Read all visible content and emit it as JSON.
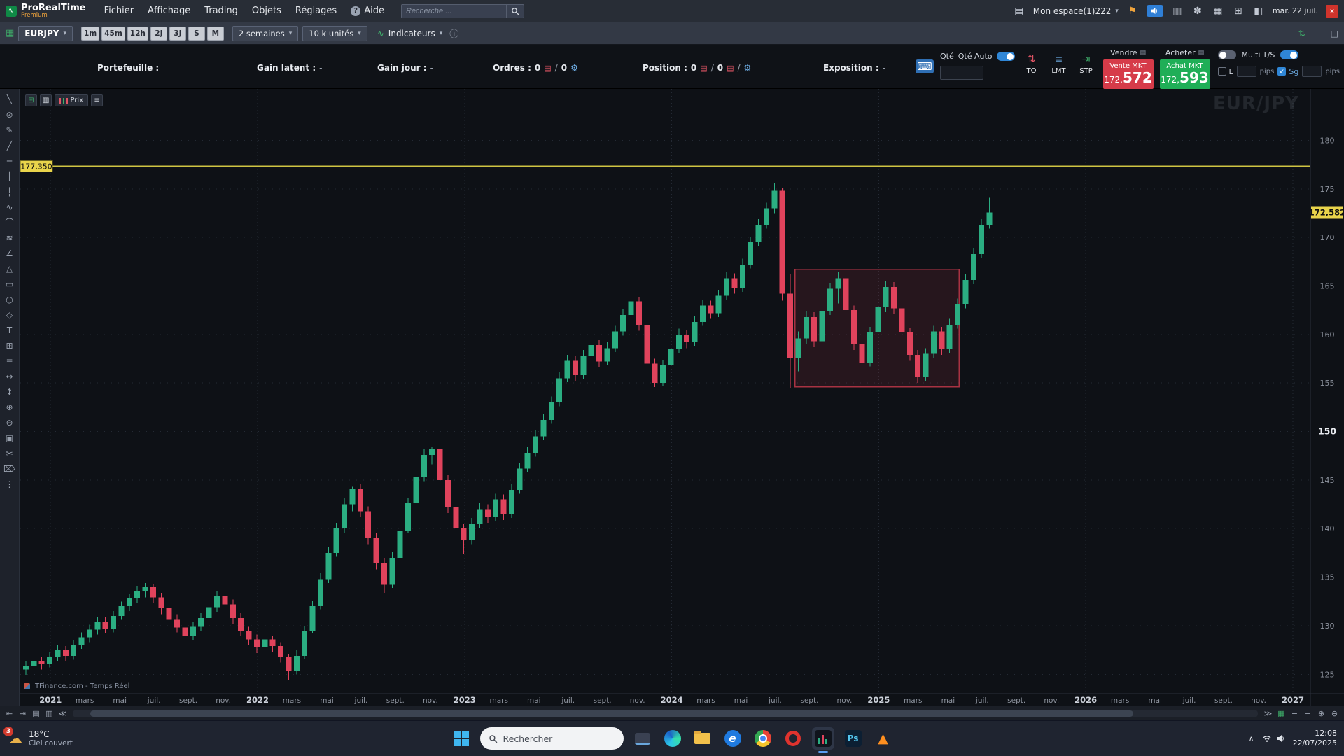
{
  "menubar": {
    "brand": "ProRealTime",
    "brand_tier": "Premium",
    "menus": [
      "Fichier",
      "Affichage",
      "Trading",
      "Objets",
      "Réglages"
    ],
    "help_label": "Aide",
    "search_placeholder": "Recherche ...",
    "workspace_label": "Mon espace(1)222",
    "datetime": "mar. 22 juil."
  },
  "toolbar": {
    "symbol": "EURJPY",
    "timeframes": [
      "1m",
      "45m",
      "12h",
      "2J",
      "3J",
      "S",
      "M"
    ],
    "period": "2 semaines",
    "quantity": "10 k unités",
    "indicators_label": "Indicateurs"
  },
  "tradingbar": {
    "portfolio_label": "Portefeuille :",
    "gain_latent_label": "Gain latent :",
    "gain_latent_value": "-",
    "gain_day_label": "Gain jour :",
    "gain_day_value": "-",
    "orders_label": "Ordres :",
    "orders_open": "0",
    "orders_sep": "/",
    "orders_pending": "0",
    "position_label": "Position :",
    "position_qty": "0",
    "position_sep": "/",
    "position_count": "0",
    "position_sep2": "/",
    "exposure_label": "Exposition :",
    "exposure_value": "-",
    "qty_label": "Qté",
    "qty_auto_label": "Qté Auto",
    "qty_value": "",
    "btn_to": "TO",
    "btn_lmt": "LMT",
    "btn_stp": "STP",
    "sell_header": "Vendre",
    "buy_header": "Acheter",
    "sell_mkt_label": "Vente MKT",
    "sell_price_prefix": "172,",
    "sell_price_big": "572",
    "buy_mkt_label": "Achat MKT",
    "buy_price_prefix": "172,",
    "buy_price_big": "593",
    "limit_checkbox_label": "L",
    "pips_label_1": "pips",
    "multi_ts_label": "Multi T/S",
    "sg_label": "Sg",
    "pips_label_2": "pips"
  },
  "chart_header": {
    "price_panel_label": "Prix"
  },
  "watermark": "EUR/JPY",
  "feed_label": "ITFinance.com - Temps Réel",
  "left_tools": [
    "╲",
    "⊘",
    "✎",
    "╱",
    "─",
    "│",
    "┆",
    "∿",
    "⌒",
    "≋",
    "∠",
    "△",
    "▭",
    "○",
    "◇",
    "T",
    "⊞",
    "≡",
    "↔",
    "↕",
    "⊕",
    "⊖",
    "▣",
    "✂",
    "⌦",
    "⋮"
  ],
  "scrollbar": {
    "left_icons": [
      "⇤",
      "⇥",
      "▤",
      "▥",
      "≪"
    ],
    "right_icons": [
      "≫",
      "▦",
      "−",
      "+",
      "⊕",
      "⊖"
    ]
  },
  "taskbar": {
    "badge": "3",
    "temperature": "18°C",
    "weather": "Ciel couvert",
    "search_placeholder": "Rechercher",
    "time": "12:08",
    "date": "22/07/2025"
  },
  "chart_data": {
    "type": "candlestick",
    "title": "EURJPY",
    "timeframe_per_candle": "2 semaines",
    "price_axis_labels": [
      180,
      175,
      170,
      165,
      160,
      155,
      150,
      145,
      140,
      135,
      130,
      125
    ],
    "price_axis_emphasized": 150,
    "price_range": [
      123.0,
      185.3
    ],
    "index_range": [
      -0.7,
      161.3
    ],
    "x_axis": [
      [
        "2021",
        3.1
      ],
      [
        "mars",
        7.4
      ],
      [
        "mai",
        11.8
      ],
      [
        "juil.",
        16.1
      ],
      [
        "sept.",
        20.4
      ],
      [
        "nov.",
        24.8
      ],
      [
        "2022",
        29.1
      ],
      [
        "mars",
        33.4
      ],
      [
        "mai",
        37.8
      ],
      [
        "juil.",
        42.1
      ],
      [
        "sept.",
        46.4
      ],
      [
        "nov.",
        50.8
      ],
      [
        "2023",
        55.1
      ],
      [
        "mars",
        59.4
      ],
      [
        "mai",
        63.8
      ],
      [
        "juil.",
        68.1
      ],
      [
        "sept.",
        72.4
      ],
      [
        "nov.",
        76.8
      ],
      [
        "2024",
        81.1
      ],
      [
        "mars",
        85.4
      ],
      [
        "mai",
        89.8
      ],
      [
        "juil.",
        94.1
      ],
      [
        "sept.",
        98.4
      ],
      [
        "nov.",
        102.8
      ],
      [
        "2025",
        107.1
      ],
      [
        "mars",
        111.4
      ],
      [
        "mai",
        115.8
      ],
      [
        "juil.",
        120.1
      ],
      [
        "sept.",
        124.4
      ],
      [
        "nov.",
        128.8
      ],
      [
        "2026",
        133.1
      ],
      [
        "mars",
        137.4
      ],
      [
        "mai",
        141.8
      ],
      [
        "juil.",
        146.1
      ],
      [
        "sept.",
        150.4
      ],
      [
        "nov.",
        154.8
      ],
      [
        "2027",
        159.1
      ]
    ],
    "candles": [
      [
        125.5,
        126.3,
        124.9,
        125.9
      ],
      [
        125.9,
        126.9,
        125.4,
        126.4
      ],
      [
        126.4,
        126.8,
        125.5,
        126.1
      ],
      [
        126.1,
        127.3,
        125.7,
        126.8
      ],
      [
        126.8,
        128.0,
        126.3,
        127.5
      ],
      [
        127.5,
        127.9,
        126.3,
        126.9
      ],
      [
        126.9,
        128.5,
        126.5,
        128.0
      ],
      [
        128.0,
        129.3,
        127.6,
        128.8
      ],
      [
        128.8,
        130.1,
        128.3,
        129.6
      ],
      [
        129.6,
        130.9,
        129.1,
        130.4
      ],
      [
        130.4,
        130.9,
        129.2,
        129.7
      ],
      [
        129.7,
        131.5,
        129.3,
        131.0
      ],
      [
        131.0,
        132.5,
        130.6,
        132.0
      ],
      [
        132.0,
        133.3,
        131.5,
        132.8
      ],
      [
        132.8,
        134.1,
        132.3,
        133.6
      ],
      [
        133.6,
        134.4,
        132.9,
        134.0
      ],
      [
        134.0,
        134.3,
        132.3,
        132.9
      ],
      [
        132.9,
        133.4,
        131.2,
        131.8
      ],
      [
        131.8,
        132.2,
        130.1,
        130.6
      ],
      [
        130.6,
        131.2,
        129.3,
        129.8
      ],
      [
        129.8,
        130.4,
        128.4,
        128.9
      ],
      [
        128.9,
        130.4,
        128.5,
        129.9
      ],
      [
        129.9,
        131.3,
        129.4,
        130.8
      ],
      [
        130.8,
        132.4,
        130.3,
        131.9
      ],
      [
        131.9,
        133.6,
        131.4,
        133.1
      ],
      [
        133.1,
        133.5,
        131.6,
        132.2
      ],
      [
        132.2,
        132.7,
        130.2,
        130.8
      ],
      [
        130.8,
        131.3,
        128.9,
        129.4
      ],
      [
        129.4,
        129.9,
        128.0,
        128.6
      ],
      [
        128.6,
        129.1,
        127.2,
        127.8
      ],
      [
        127.8,
        129.2,
        127.3,
        128.6
      ],
      [
        128.6,
        129.0,
        127.3,
        127.9
      ],
      [
        127.9,
        128.3,
        126.2,
        126.8
      ],
      [
        126.8,
        127.1,
        124.4,
        125.3
      ],
      [
        125.3,
        127.5,
        125.0,
        126.9
      ],
      [
        126.9,
        130.0,
        126.6,
        129.5
      ],
      [
        129.5,
        132.6,
        129.2,
        132.0
      ],
      [
        132.0,
        135.4,
        131.7,
        134.8
      ],
      [
        134.8,
        138.1,
        134.4,
        137.5
      ],
      [
        137.5,
        140.6,
        137.1,
        140.0
      ],
      [
        140.0,
        143.1,
        139.6,
        142.5
      ],
      [
        142.5,
        144.3,
        141.8,
        144.1
      ],
      [
        144.1,
        144.6,
        141.2,
        141.8
      ],
      [
        141.8,
        142.3,
        138.4,
        139.0
      ],
      [
        139.0,
        139.5,
        135.8,
        136.4
      ],
      [
        136.4,
        137.0,
        133.4,
        134.2
      ],
      [
        134.2,
        137.6,
        133.9,
        137.0
      ],
      [
        137.0,
        140.4,
        136.7,
        139.8
      ],
      [
        139.8,
        143.2,
        139.5,
        142.6
      ],
      [
        142.6,
        145.9,
        142.3,
        145.3
      ],
      [
        145.3,
        148.2,
        144.9,
        147.6
      ],
      [
        147.6,
        148.4,
        146.6,
        148.2
      ],
      [
        148.2,
        148.6,
        144.4,
        145.0
      ],
      [
        145.0,
        145.5,
        141.6,
        142.2
      ],
      [
        142.2,
        142.7,
        139.4,
        140.0
      ],
      [
        140.0,
        140.5,
        137.4,
        138.8
      ],
      [
        138.8,
        141.1,
        138.4,
        140.5
      ],
      [
        140.5,
        142.6,
        140.1,
        142.0
      ],
      [
        142.0,
        142.5,
        140.6,
        141.2
      ],
      [
        141.2,
        143.6,
        140.8,
        143.0
      ],
      [
        143.0,
        143.5,
        140.9,
        141.5
      ],
      [
        141.5,
        144.6,
        141.1,
        144.0
      ],
      [
        144.0,
        146.8,
        143.6,
        146.2
      ],
      [
        146.2,
        148.4,
        145.8,
        147.8
      ],
      [
        147.8,
        150.1,
        147.4,
        149.5
      ],
      [
        149.5,
        151.8,
        149.1,
        151.2
      ],
      [
        151.2,
        153.6,
        150.8,
        153.0
      ],
      [
        153.0,
        156.1,
        152.6,
        155.5
      ],
      [
        155.5,
        157.9,
        155.1,
        157.3
      ],
      [
        157.3,
        157.8,
        155.2,
        155.8
      ],
      [
        155.8,
        158.4,
        155.4,
        157.8
      ],
      [
        157.8,
        159.5,
        157.4,
        158.9
      ],
      [
        158.9,
        159.4,
        156.6,
        157.2
      ],
      [
        157.2,
        159.2,
        156.8,
        158.6
      ],
      [
        158.6,
        160.9,
        158.2,
        160.3
      ],
      [
        160.3,
        162.6,
        159.9,
        162.0
      ],
      [
        162.0,
        163.9,
        161.5,
        163.4
      ],
      [
        163.4,
        163.8,
        160.4,
        161.0
      ],
      [
        161.0,
        161.5,
        156.4,
        157.0
      ],
      [
        157.0,
        157.5,
        154.6,
        155.0
      ],
      [
        155.0,
        157.4,
        154.7,
        156.8
      ],
      [
        156.8,
        159.1,
        156.4,
        158.5
      ],
      [
        158.5,
        160.6,
        158.1,
        160.0
      ],
      [
        160.0,
        160.5,
        158.6,
        159.2
      ],
      [
        159.2,
        161.9,
        158.8,
        161.3
      ],
      [
        161.3,
        163.6,
        160.9,
        163.0
      ],
      [
        163.0,
        163.5,
        161.6,
        162.2
      ],
      [
        162.2,
        164.6,
        161.8,
        164.0
      ],
      [
        164.0,
        166.4,
        163.6,
        165.8
      ],
      [
        165.8,
        166.3,
        164.2,
        164.8
      ],
      [
        164.8,
        167.8,
        164.4,
        167.2
      ],
      [
        167.2,
        170.1,
        166.8,
        169.5
      ],
      [
        169.5,
        171.9,
        169.1,
        171.3
      ],
      [
        171.3,
        173.6,
        170.9,
        173.0
      ],
      [
        173.0,
        175.6,
        172.5,
        174.8
      ],
      [
        174.8,
        175.1,
        163.5,
        164.2
      ],
      [
        164.2,
        166.2,
        154.5,
        157.6
      ],
      [
        157.6,
        160.3,
        156.2,
        159.6
      ],
      [
        159.6,
        162.4,
        159.0,
        161.8
      ],
      [
        161.8,
        162.3,
        158.7,
        159.3
      ],
      [
        159.3,
        163.0,
        158.8,
        162.4
      ],
      [
        162.4,
        165.3,
        162.0,
        164.7
      ],
      [
        164.7,
        166.4,
        163.2,
        165.8
      ],
      [
        165.8,
        166.2,
        161.9,
        162.5
      ],
      [
        162.5,
        163.0,
        158.4,
        159.0
      ],
      [
        159.0,
        159.6,
        156.3,
        157.1
      ],
      [
        157.1,
        160.8,
        156.7,
        160.2
      ],
      [
        160.2,
        163.4,
        159.8,
        162.8
      ],
      [
        162.8,
        165.5,
        162.3,
        164.9
      ],
      [
        164.9,
        165.4,
        162.1,
        162.7
      ],
      [
        162.7,
        163.2,
        159.6,
        160.2
      ],
      [
        160.2,
        160.7,
        157.3,
        157.9
      ],
      [
        157.9,
        158.4,
        155.0,
        155.6
      ],
      [
        155.6,
        158.6,
        155.2,
        158.0
      ],
      [
        158.0,
        160.9,
        157.6,
        160.3
      ],
      [
        160.3,
        160.8,
        157.9,
        158.5
      ],
      [
        158.5,
        161.6,
        158.1,
        161.0
      ],
      [
        161.0,
        163.7,
        160.6,
        163.1
      ],
      [
        163.1,
        166.2,
        162.7,
        165.6
      ],
      [
        165.6,
        168.9,
        165.2,
        168.3
      ],
      [
        168.3,
        171.9,
        167.9,
        171.3
      ],
      [
        171.3,
        174.1,
        170.9,
        172.58
      ]
    ],
    "box_annotation": {
      "i1": 96.6,
      "i2": 117.2,
      "price_low": 154.6,
      "price_high": 166.7
    },
    "horizontal_line": {
      "price": 177.35,
      "label": "177,350"
    },
    "last_price": {
      "value": 172.582,
      "label": "172,582"
    },
    "colors": {
      "up": "#2bae82",
      "down": "#e0435c",
      "grid": "#242a34",
      "bg": "#0e1116",
      "line": "#cfc443",
      "tag": "#e9d44b",
      "box_stroke": "#a83242",
      "box_fill": "rgba(168,50,66,0.16)"
    }
  }
}
